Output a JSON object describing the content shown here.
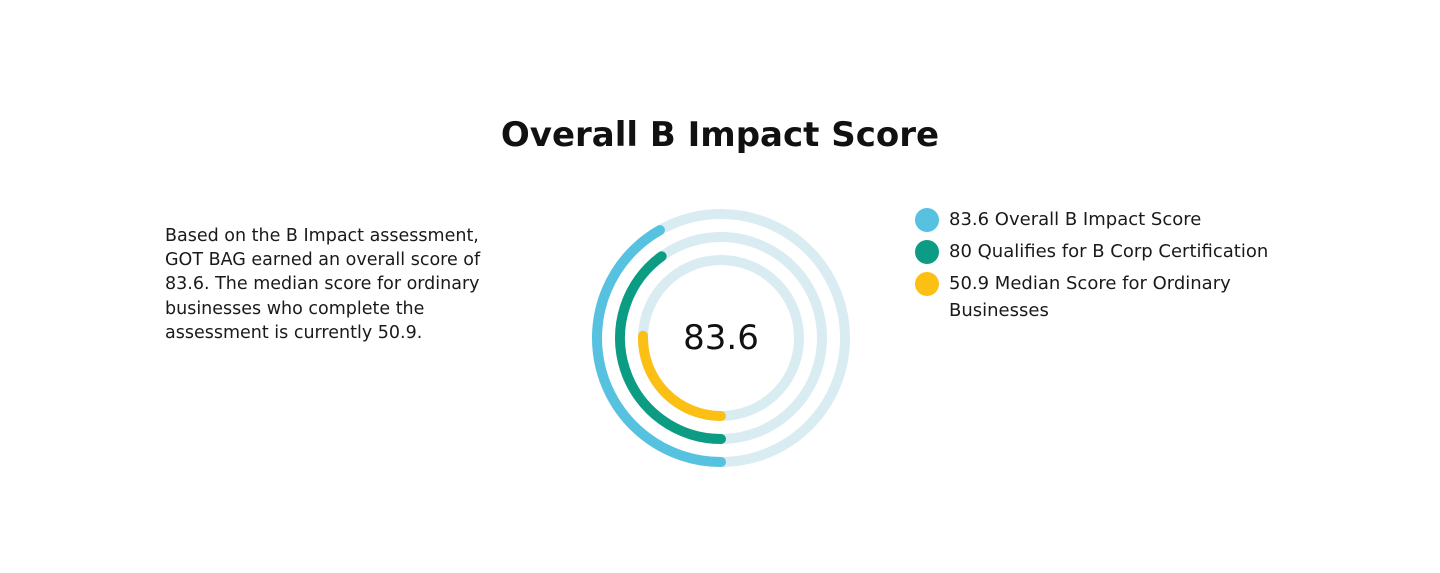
{
  "page": {
    "title": "Overall B Impact Score",
    "description": "Based on the B Impact assessment, GOT BAG earned an overall score of 83.6. The median score for ordinary businesses who complete the assessment is currently 50.9."
  },
  "chart_data": {
    "type": "radial-bar",
    "center_label": "83.6",
    "max": 200,
    "track_color": "#d9ecf1",
    "series": [
      {
        "name": "Overall B Impact Score",
        "value": 83.6,
        "value_label": "83.6",
        "color": "#56c2e0"
      },
      {
        "name": "Qualifies for B Corp Certification",
        "value": 80,
        "value_label": "80",
        "color": "#0c9c84"
      },
      {
        "name": "Median Score for Ordinary Businesses",
        "value": 50.9,
        "value_label": "50.9",
        "color": "#fbc013"
      }
    ]
  },
  "legend": {
    "items": [
      {
        "text": "83.6 Overall B Impact Score",
        "color": "#56c2e0"
      },
      {
        "text": "80 Qualifies for B Corp Certification",
        "color": "#0c9c84"
      },
      {
        "text": "50.9 Median Score for Ordinary Businesses",
        "color": "#fbc013"
      }
    ]
  }
}
